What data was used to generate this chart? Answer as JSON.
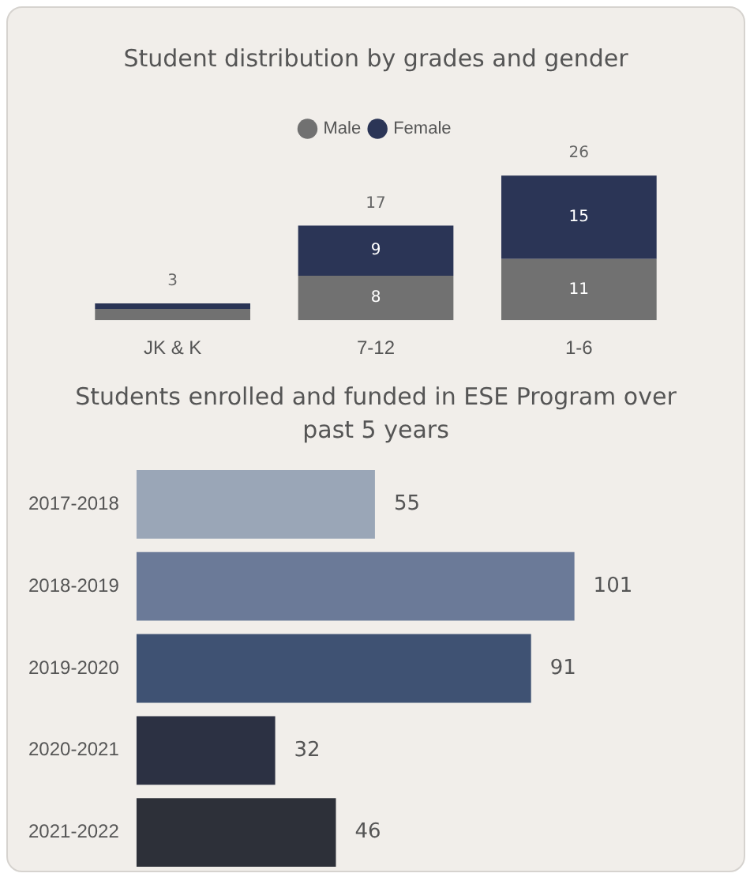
{
  "chart_data": [
    {
      "type": "bar",
      "title": "Student distribution by grades and gender",
      "stacked": true,
      "legend": "top",
      "categories": [
        "JK & K",
        "7-12",
        "1-6"
      ],
      "series": [
        {
          "name": "Male",
          "color": "#717171",
          "values": [
            2,
            8,
            11
          ],
          "value_labels": [
            null,
            "8",
            "11"
          ]
        },
        {
          "name": "Female",
          "color": "#2b3556",
          "values": [
            1,
            9,
            15
          ],
          "value_labels": [
            null,
            "9",
            "15"
          ]
        }
      ],
      "totals": [
        "3",
        "17",
        "26"
      ]
    },
    {
      "type": "bar",
      "title": "Students enrolled and funded in ESE Program over past 5 years",
      "orientation": "horizontal",
      "categories": [
        "2017-2018",
        "2018-2019",
        "2019-2020",
        "2020-2021",
        "2021-2022"
      ],
      "values": [
        55,
        101,
        91,
        32,
        46
      ],
      "colors": [
        "#9aa6b7",
        "#6b7a98",
        "#3f5273",
        "#2c3143",
        "#2d3039"
      ],
      "data_labels": true
    }
  ]
}
